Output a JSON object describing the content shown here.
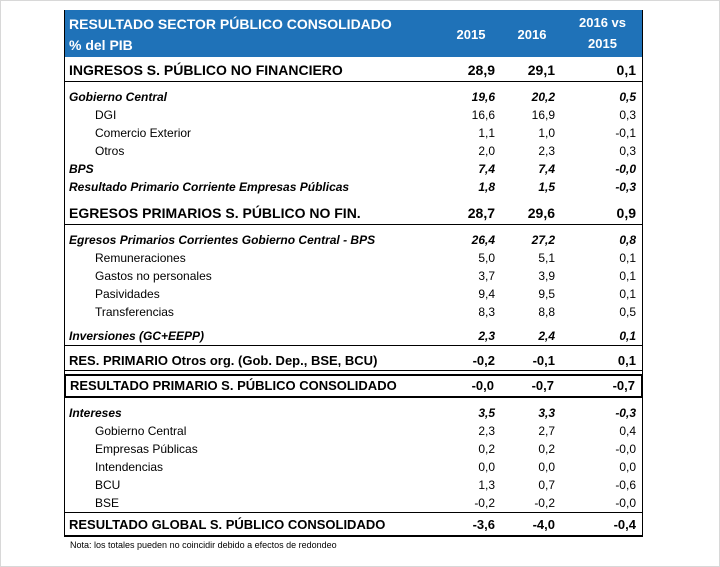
{
  "header": {
    "title_line1": "RESULTADO SECTOR PÚBLICO CONSOLIDADO",
    "title_line2": "% del PIB",
    "col1": "2015",
    "col2": "2016",
    "col3_line1": "2016 vs",
    "col3_line2": "2015"
  },
  "rows": [
    {
      "label": "INGRESOS S. PÚBLICO NO FINANCIERO",
      "v2015": "28,9",
      "v2016": "29,1",
      "diff": "0,1"
    },
    {
      "label": "Gobierno Central",
      "v2015": "19,6",
      "v2016": "20,2",
      "diff": "0,5"
    },
    {
      "label": "DGI",
      "v2015": "16,6",
      "v2016": "16,9",
      "diff": "0,3"
    },
    {
      "label": "Comercio Exterior",
      "v2015": "1,1",
      "v2016": "1,0",
      "diff": "-0,1"
    },
    {
      "label": "Otros",
      "v2015": "2,0",
      "v2016": "2,3",
      "diff": "0,3"
    },
    {
      "label": "BPS",
      "v2015": "7,4",
      "v2016": "7,4",
      "diff": "-0,0"
    },
    {
      "label": "Resultado Primario Corriente Empresas Públicas",
      "v2015": "1,8",
      "v2016": "1,5",
      "diff": "-0,3"
    },
    {
      "label": "EGRESOS PRIMARIOS S. PÚBLICO NO FIN.",
      "v2015": "28,7",
      "v2016": "29,6",
      "diff": "0,9"
    },
    {
      "label": "Egresos Primarios Corrientes Gobierno Central - BPS",
      "v2015": "26,4",
      "v2016": "27,2",
      "diff": "0,8"
    },
    {
      "label": "Remuneraciones",
      "v2015": "5,0",
      "v2016": "5,1",
      "diff": "0,1"
    },
    {
      "label": "Gastos no personales",
      "v2015": "3,7",
      "v2016": "3,9",
      "diff": "0,1"
    },
    {
      "label": "Pasividades",
      "v2015": "9,4",
      "v2016": "9,5",
      "diff": "0,1"
    },
    {
      "label": "Transferencias",
      "v2015": "8,3",
      "v2016": "8,8",
      "diff": "0,5"
    },
    {
      "label": "Inversiones (GC+EEPP)",
      "v2015": "2,3",
      "v2016": "2,4",
      "diff": "0,1"
    },
    {
      "label": "RES. PRIMARIO Otros org. (Gob. Dep., BSE, BCU)",
      "v2015": "-0,2",
      "v2016": "-0,1",
      "diff": "0,1"
    },
    {
      "label": "RESULTADO PRIMARIO S. PÚBLICO CONSOLIDADO",
      "v2015": "-0,0",
      "v2016": "-0,7",
      "diff": "-0,7"
    },
    {
      "label": "Intereses",
      "v2015": "3,5",
      "v2016": "3,3",
      "diff": "-0,3"
    },
    {
      "label": "Gobierno Central",
      "v2015": "2,3",
      "v2016": "2,7",
      "diff": "0,4"
    },
    {
      "label": "Empresas Públicas",
      "v2015": "0,2",
      "v2016": "0,2",
      "diff": "-0,0"
    },
    {
      "label": "Intendencias",
      "v2015": "0,0",
      "v2016": "0,0",
      "diff": "0,0"
    },
    {
      "label": "BCU",
      "v2015": "1,3",
      "v2016": "0,7",
      "diff": "-0,6"
    },
    {
      "label": "BSE",
      "v2015": "-0,2",
      "v2016": "-0,2",
      "diff": "-0,0"
    },
    {
      "label": "RESULTADO GLOBAL S. PÚBLICO CONSOLIDADO",
      "v2015": "-3,6",
      "v2016": "-4,0",
      "diff": "-0,4"
    }
  ],
  "note": "Nota: los totales pueden no coincidir debido a efectos de redondeo",
  "colors": {
    "header_bg": "#1f72b8",
    "header_text": "#ffffff"
  }
}
